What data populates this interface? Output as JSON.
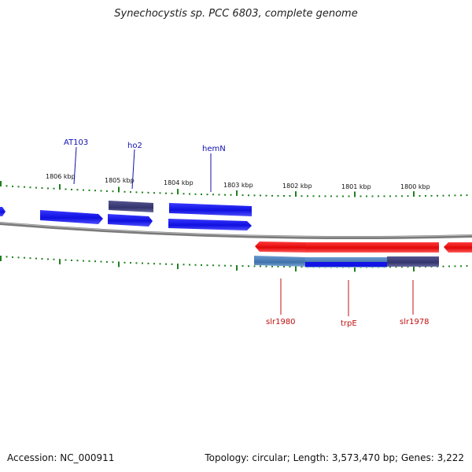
{
  "title": "Synechocystis sp. PCC 6803, complete genome",
  "footer": {
    "accession": "Accession: NC_000911",
    "summary": "Topology: circular; Length: 3,573,470 bp; Genes: 3,222"
  },
  "colors": {
    "forward_gene": "#1414e6",
    "forward_gene_alt": "#3a3a80",
    "reverse_gene": "#e61414",
    "reverse_gene_alt": "#4a7ab0",
    "backbone": "#808080",
    "tick": "#208020",
    "label_forward": "#1010b0",
    "label_reverse": "#c01010"
  },
  "ticks": [
    {
      "label": "1806 kbp"
    },
    {
      "label": "1805 kbp"
    },
    {
      "label": "1804 kbp"
    },
    {
      "label": "1803 kbp"
    },
    {
      "label": "1802 kbp"
    },
    {
      "label": "1801 kbp"
    },
    {
      "label": "1800 kbp"
    }
  ],
  "gene_labels": [
    {
      "name": "AT103",
      "strand": "forward"
    },
    {
      "name": "ho2",
      "strand": "forward"
    },
    {
      "name": "hemN",
      "strand": "forward"
    },
    {
      "name": "slr1980",
      "strand": "reverse"
    },
    {
      "name": "trpE",
      "strand": "reverse"
    },
    {
      "name": "slr1978",
      "strand": "reverse"
    }
  ]
}
